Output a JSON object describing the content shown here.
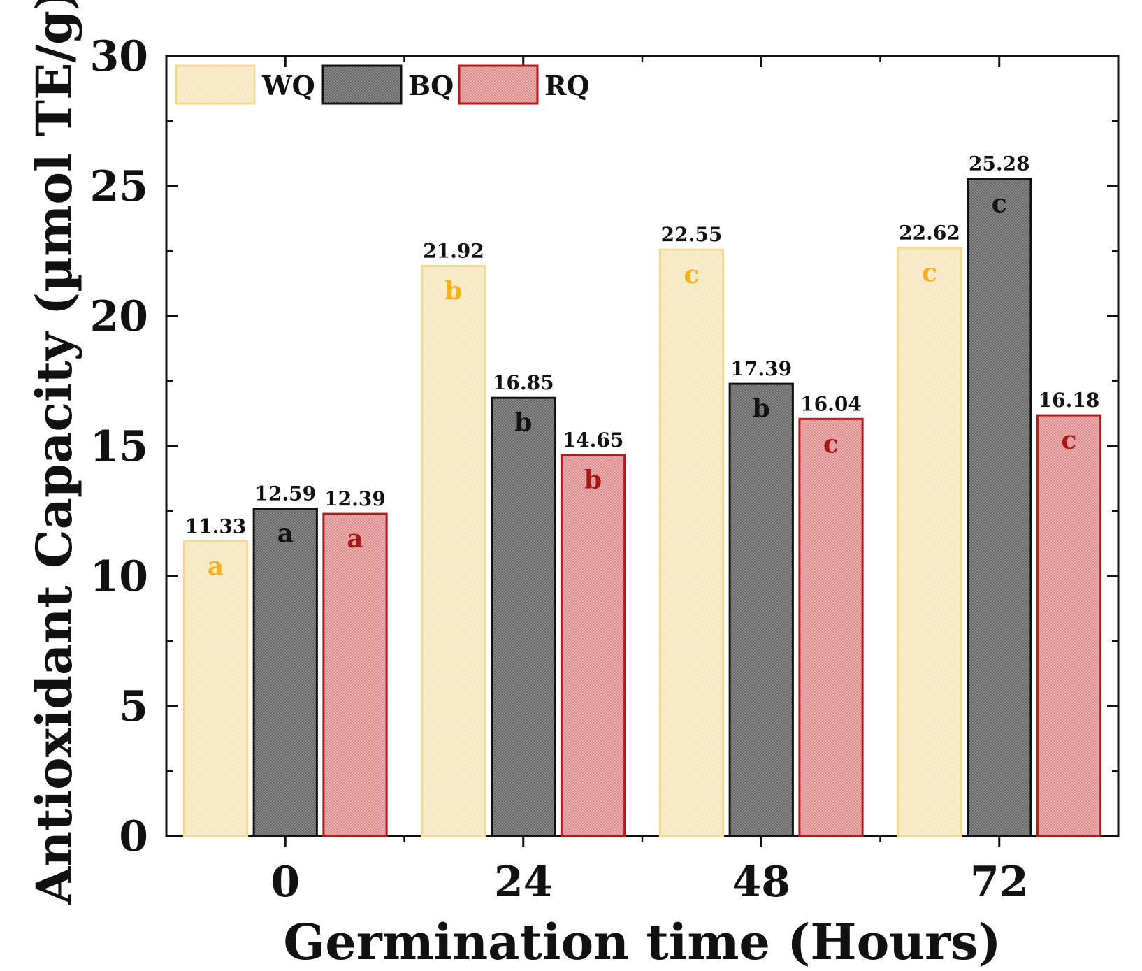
{
  "chart_data": {
    "type": "bar",
    "title": "",
    "xlabel": "Germination time (Hours)",
    "ylabel": "Antioxidant Capacity (µmol TE/g)",
    "ylim": [
      0,
      30
    ],
    "yticks": [
      "0",
      "5",
      "10",
      "15",
      "20",
      "25",
      "30"
    ],
    "categories": [
      "0",
      "24",
      "48",
      "72"
    ],
    "legend_position": "top-left",
    "series": [
      {
        "name": "WQ",
        "fill": "#fbf1d6",
        "stroke": "#f3d98a",
        "letter_color": "#f2b21c",
        "values": [
          11.33,
          21.92,
          22.55,
          22.62
        ],
        "value_labels": [
          "11.33",
          "21.92",
          "22.55",
          "22.62"
        ],
        "letters": [
          "a",
          "b",
          "c",
          "c"
        ]
      },
      {
        "name": "BQ",
        "fill": "#a9a9a9",
        "stroke": "#111111",
        "letter_color": "#111111",
        "values": [
          12.59,
          16.85,
          17.39,
          25.28
        ],
        "value_labels": [
          "12.59",
          "16.85",
          "17.39",
          "25.28"
        ],
        "letters": [
          "a",
          "b",
          "b",
          "c"
        ]
      },
      {
        "name": "RQ",
        "fill": "#e7a9aa",
        "stroke": "#b11b1b",
        "letter_color": "#a71818",
        "values": [
          12.39,
          14.65,
          16.04,
          16.18
        ],
        "value_labels": [
          "12.39",
          "14.65",
          "16.04",
          "16.18"
        ],
        "letters": [
          "a",
          "b",
          "c",
          "c"
        ]
      }
    ]
  }
}
